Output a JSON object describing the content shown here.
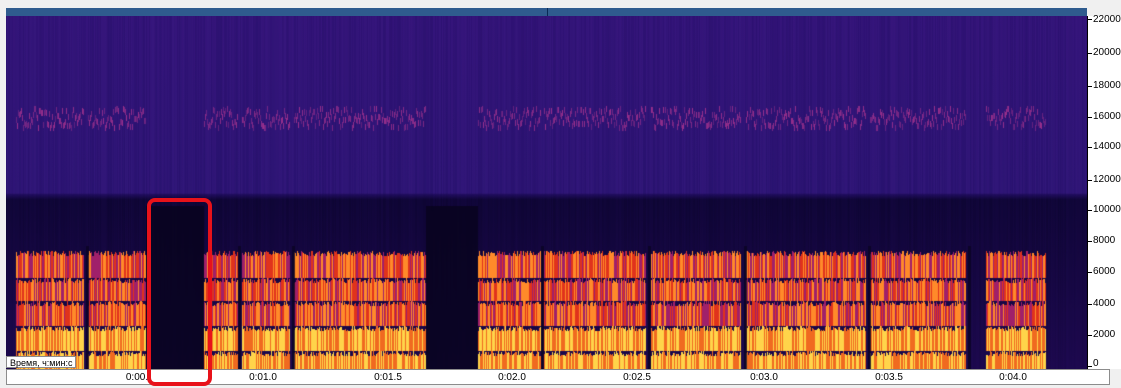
{
  "time_axis": {
    "caption": "Время, ч:мин:с",
    "labels": [
      "0:00.",
      "0:01.0",
      "0:01.5",
      "0:02.0",
      "0:02.5",
      "0:03.0",
      "0:03.5",
      "0:04.0"
    ]
  },
  "frequency_axis": {
    "labels": [
      "22000",
      "20000",
      "18000",
      "16000",
      "14000",
      "12000",
      "10000",
      "8000",
      "6000",
      "4000",
      "2000",
      "0"
    ]
  },
  "colors": {
    "background_dark": "#12063a",
    "low_energy": "#2a0f6e",
    "mid_energy": "#8a1c7a",
    "high_energy": "#e0331c",
    "peak_energy": "#ffd44a",
    "selection": "#e8121a",
    "progress_bar": "#2f5b8e"
  }
}
